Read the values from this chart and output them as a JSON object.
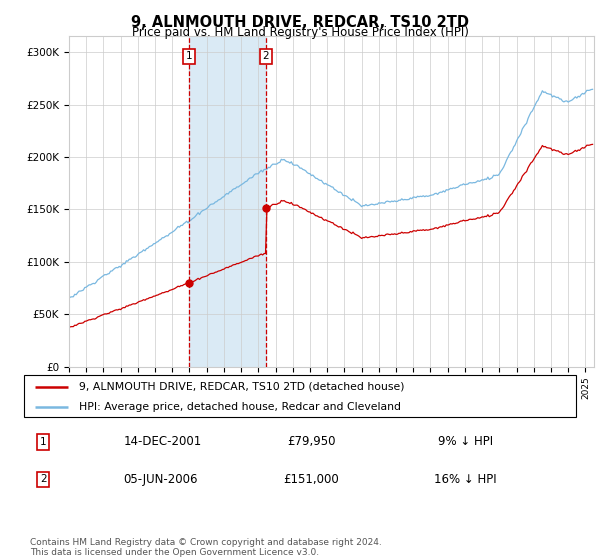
{
  "title": "9, ALNMOUTH DRIVE, REDCAR, TS10 2TD",
  "subtitle": "Price paid vs. HM Land Registry's House Price Index (HPI)",
  "ylabel_ticks": [
    "£0",
    "£50K",
    "£100K",
    "£150K",
    "£200K",
    "£250K",
    "£300K"
  ],
  "ytick_values": [
    0,
    50000,
    100000,
    150000,
    200000,
    250000,
    300000
  ],
  "ylim": [
    0,
    315000
  ],
  "xlim_start": 1995.0,
  "xlim_end": 2025.5,
  "legend_line1": "9, ALNMOUTH DRIVE, REDCAR, TS10 2TD (detached house)",
  "legend_line2": "HPI: Average price, detached house, Redcar and Cleveland",
  "transaction1_date": "14-DEC-2001",
  "transaction1_price": 79950,
  "transaction1_label": "£79,950",
  "transaction1_pct": "9% ↓ HPI",
  "transaction1_x": 2001.96,
  "transaction2_date": "05-JUN-2006",
  "transaction2_price": 151000,
  "transaction2_label": "£151,000",
  "transaction2_pct": "16% ↓ HPI",
  "transaction2_x": 2006.43,
  "hpi_color": "#7ab8e0",
  "price_color": "#cc0000",
  "footer": "Contains HM Land Registry data © Crown copyright and database right 2024.\nThis data is licensed under the Open Government Licence v3.0.",
  "shade_color": "#daeaf5",
  "vline_color": "#cc0000",
  "box_color": "#cc0000",
  "grid_color": "#cccccc",
  "bg_color": "#ffffff"
}
